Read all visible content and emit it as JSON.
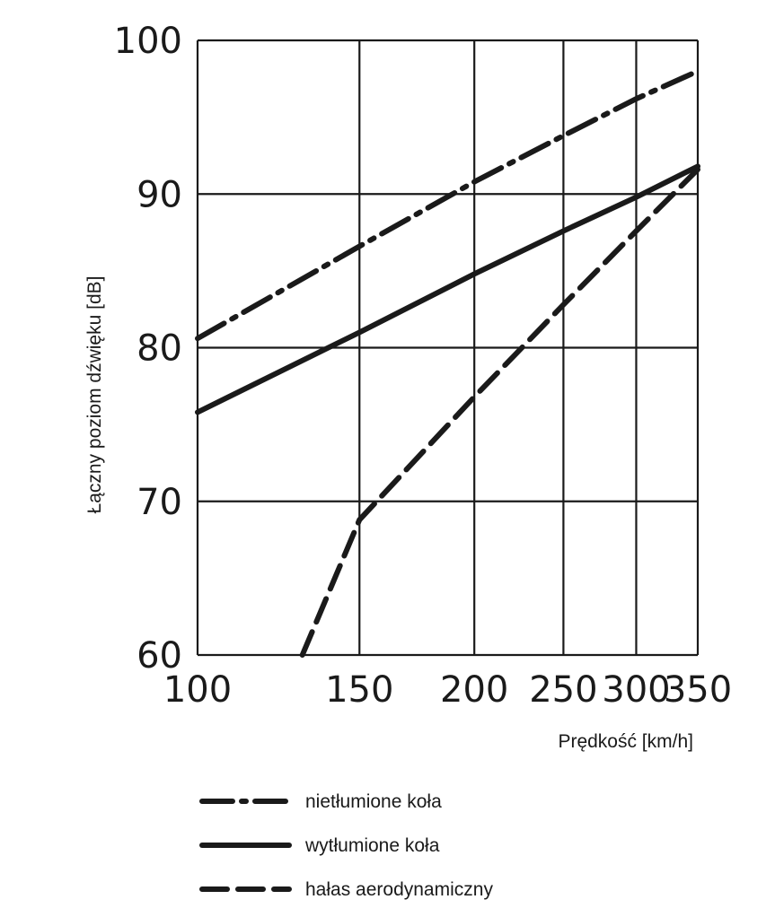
{
  "chart_data": {
    "type": "line",
    "title": "",
    "xlabel": "Prędkość  [km/h]",
    "ylabel": "Łączny poziom dźwięku  [dB]",
    "x_ticks": [
      100,
      150,
      200,
      250,
      300,
      350
    ],
    "x_tick_labels": [
      "100",
      "150",
      "200",
      "250",
      "300",
      "350"
    ],
    "x_scale": "log",
    "xlim": [
      100,
      350
    ],
    "y_ticks": [
      60,
      70,
      80,
      90,
      100
    ],
    "y_tick_labels": [
      "60",
      "70",
      "80",
      "90",
      "100"
    ],
    "ylim": [
      60,
      100
    ],
    "grid": true,
    "legend_position": "bottom",
    "series": [
      {
        "name": "nietłumione koła",
        "style": "dash-dot",
        "x": [
          100,
          150,
          200,
          250,
          300,
          350
        ],
        "y": [
          80.6,
          86.6,
          90.8,
          93.8,
          96.2,
          98.0
        ]
      },
      {
        "name": "wytłumione koła",
        "style": "solid",
        "x": [
          100,
          150,
          200,
          250,
          300,
          350
        ],
        "y": [
          75.8,
          81.0,
          84.8,
          87.6,
          89.8,
          91.8
        ]
      },
      {
        "name": "hałas aerodynamiczny",
        "style": "dashed",
        "x": [
          130,
          150,
          200,
          250,
          300,
          350
        ],
        "y": [
          60.0,
          68.8,
          76.8,
          82.8,
          87.6,
          91.6
        ]
      }
    ]
  }
}
